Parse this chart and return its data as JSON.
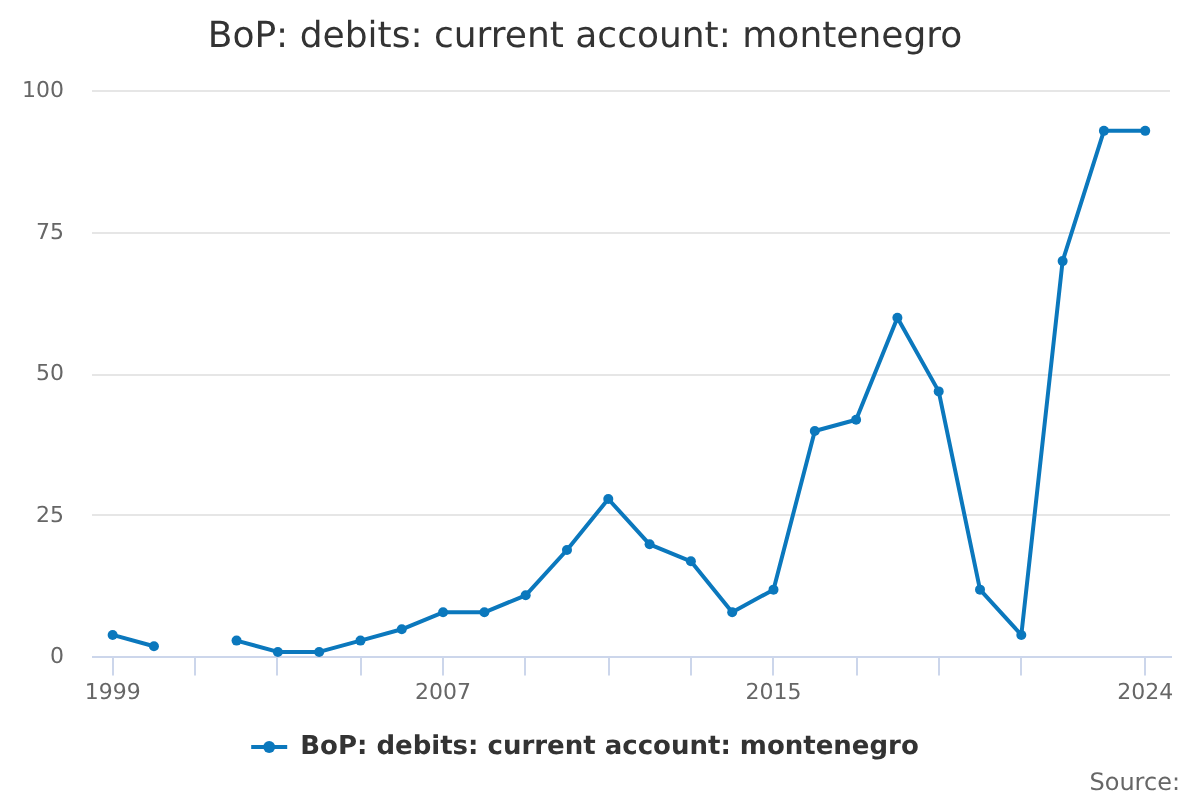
{
  "chart_data": {
    "type": "line",
    "title": "BoP: debits: current account: montenegro",
    "annotations": [
      "Source:"
    ],
    "x": [
      1999,
      2000,
      2001,
      2002,
      2003,
      2004,
      2005,
      2006,
      2007,
      2008,
      2009,
      2010,
      2011,
      2012,
      2013,
      2014,
      2015,
      2016,
      2017,
      2018,
      2019,
      2020,
      2021,
      2022,
      2023,
      2024
    ],
    "series": [
      {
        "name": "BoP: debits: current account: montenegro",
        "color": "#0b78bd",
        "values": [
          4,
          2,
          null,
          3,
          1,
          1,
          3,
          5,
          8,
          8,
          11,
          19,
          28,
          20,
          17,
          8,
          12,
          40,
          42,
          60,
          47,
          12,
          4,
          70,
          93,
          93
        ]
      }
    ],
    "xlim": [
      1998.5,
      2024.6
    ],
    "xticks": [
      1999,
      {
        "value": 2001,
        "label": null
      },
      {
        "value": 2003,
        "label": null
      },
      {
        "value": 2005,
        "label": null
      },
      2007,
      {
        "value": 2009,
        "label": null
      },
      {
        "value": 2011,
        "label": null
      },
      {
        "value": 2013,
        "label": null
      },
      2015,
      {
        "value": 2017,
        "label": null
      },
      {
        "value": 2019,
        "label": null
      },
      {
        "value": 2021,
        "label": null
      },
      2024
    ],
    "ylim": [
      0,
      100
    ],
    "yticks": [
      0,
      25,
      50,
      75,
      100
    ],
    "grid": "y",
    "legend": "bottom",
    "marker": "circle",
    "line_style": "solid"
  }
}
